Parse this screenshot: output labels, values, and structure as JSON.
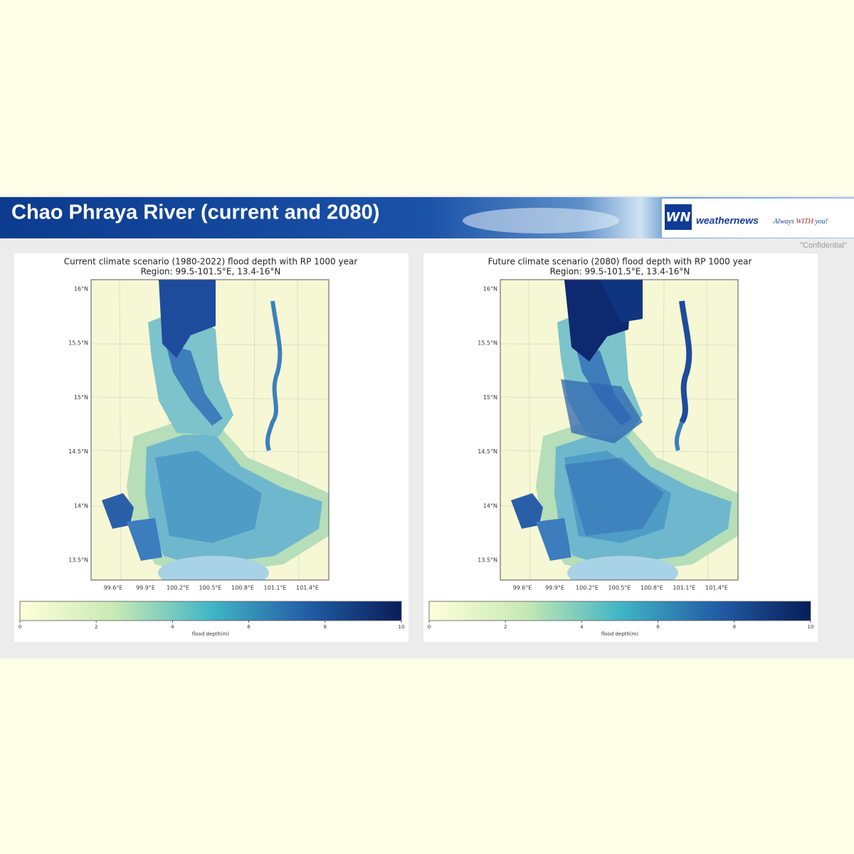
{
  "header": {
    "title": "Chao Phraya River (current and 2080)",
    "logo_mark": "WN",
    "logo_text": "weathernews",
    "tagline_1": "Always",
    "tagline_2": "WITH",
    "tagline_3": "you!",
    "note": "\"Confidential\""
  },
  "panels": [
    {
      "title": "Current climate scenario (1980-2022) flood depth with RP 1000 year",
      "subtitle": "Region: 99.5-101.5°E, 13.4-16°N",
      "lat_ticks": [
        "16°N",
        "15.5°N",
        "15°N",
        "14.5°N",
        "14°N",
        "13.5°N"
      ],
      "lon_ticks": [
        "99.6°E",
        "99.9°E",
        "100.2°E",
        "100.5°E",
        "100.8°E",
        "101.1°E",
        "101.4°E"
      ],
      "colorbar_ticks": [
        0,
        2,
        4,
        6,
        8,
        10
      ],
      "colorbar_label": "flood depth(m)"
    },
    {
      "title": "Future climate scenario (2080) flood depth with RP 1000 year",
      "subtitle": "Region: 99.5-101.5°E, 13.4-16°N",
      "lat_ticks": [
        "16°N",
        "15.5°N",
        "15°N",
        "14.5°N",
        "14°N",
        "13.5°N"
      ],
      "lon_ticks": [
        "99.6°E",
        "99.9°E",
        "100.2°E",
        "100.5°E",
        "100.8°E",
        "101.1°E",
        "101.4°E"
      ],
      "colorbar_ticks": [
        0,
        2,
        4,
        6,
        8,
        10
      ],
      "colorbar_label": "flood depth(m)"
    }
  ]
}
